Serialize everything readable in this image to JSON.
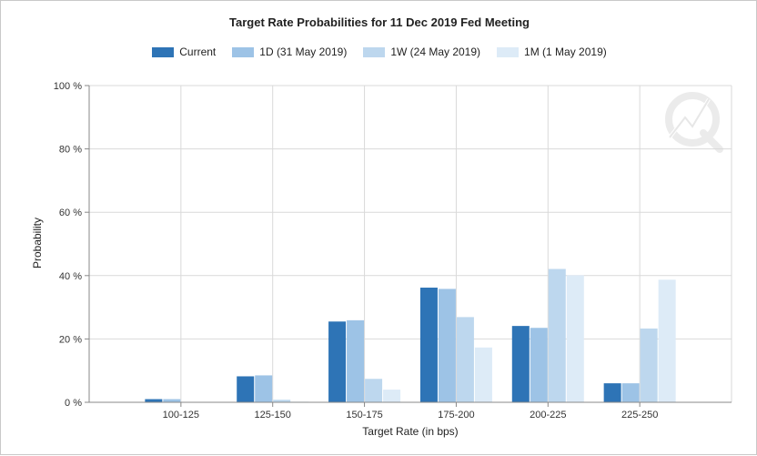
{
  "chart_data": {
    "type": "bar",
    "title": "Target Rate Probabilities for 11 Dec 2019 Fed Meeting",
    "xlabel": "Target Rate (in bps)",
    "ylabel": "Probability",
    "categories": [
      "100-125",
      "125-150",
      "150-175",
      "175-200",
      "200-225",
      "225-250"
    ],
    "ylim": [
      0,
      100
    ],
    "yticks": [
      0,
      20,
      40,
      60,
      80,
      100
    ],
    "ytick_labels": [
      "0 %",
      "20 %",
      "40 %",
      "60 %",
      "80 %",
      "100 %"
    ],
    "grid": true,
    "legend_position": "top",
    "series": [
      {
        "name": "Current",
        "color": "#2e74b6",
        "values": [
          1.0,
          8.2,
          25.5,
          36.2,
          24.1,
          6.0
        ]
      },
      {
        "name": "1D (31 May 2019)",
        "color": "#9dc3e6",
        "values": [
          1.0,
          8.5,
          25.9,
          35.8,
          23.5,
          6.0
        ]
      },
      {
        "name": "1W (24 May 2019)",
        "color": "#bdd7ee",
        "values": [
          0.0,
          0.8,
          7.4,
          26.9,
          42.1,
          23.3
        ]
      },
      {
        "name": "1M (1 May 2019)",
        "color": "#ddebf7",
        "values": [
          0.0,
          0.2,
          4.0,
          17.3,
          40.1,
          38.7
        ]
      }
    ]
  }
}
